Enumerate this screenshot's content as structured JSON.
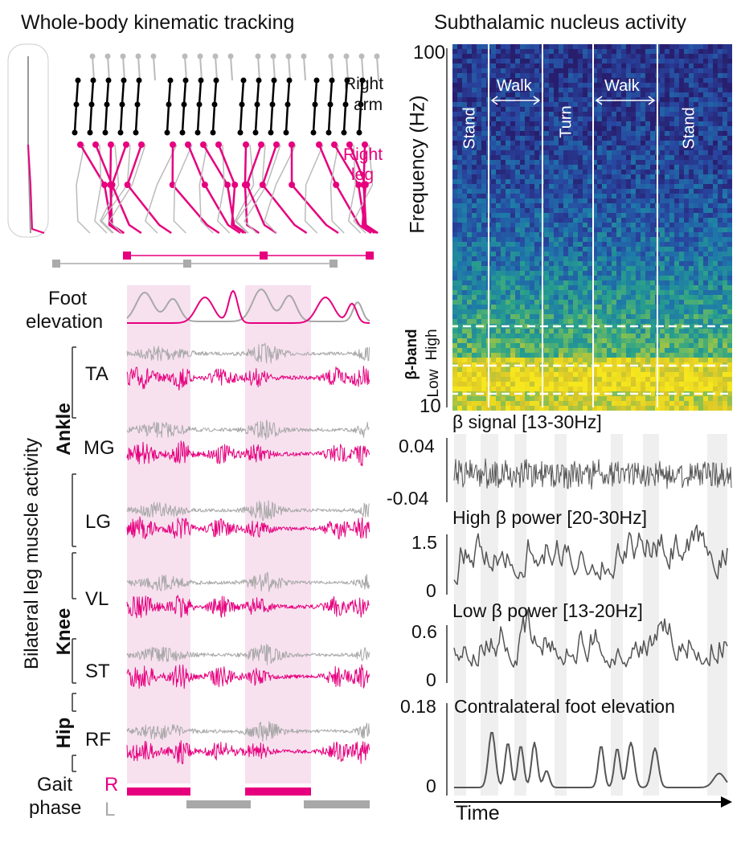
{
  "left": {
    "title": "Whole-body kinematic tracking",
    "right_arm_label": "Right\narm",
    "right_arm_1": "Right",
    "right_arm_2": "arm",
    "right_leg_1": "Right",
    "right_leg_2": "leg",
    "foot_elevation_1": "Foot",
    "foot_elevation_2": "elevation",
    "muscle_axis_label": "Bilateral leg muscle activity",
    "groups": {
      "ankle": "Ankle",
      "knee": "Knee",
      "hip": "Hip"
    },
    "muscles": [
      "TA",
      "MG",
      "LG",
      "VL",
      "ST",
      "RF"
    ],
    "gait_phase_1": "Gait",
    "gait_phase_2": "phase",
    "gait_R": "R",
    "gait_L": "L"
  },
  "right": {
    "title": "Subthalamic nucleus activity",
    "freq_label": "Frequency (Hz)",
    "freq_max": "100",
    "freq_min": "10",
    "phases": {
      "stand1": "Stand",
      "walk1": "Walk",
      "turn": "Turn",
      "walk2": "Walk",
      "stand2": "Stand"
    },
    "beta_band": "β-band",
    "beta_high": "High",
    "beta_low": "Low",
    "beta_signal": {
      "title": "β signal [13-30Hz]",
      "ymax": "0.04",
      "ymin": "-0.04"
    },
    "high_beta": {
      "title": "High β power [20-30Hz]",
      "ymax": "1.5",
      "ymin": "0"
    },
    "low_beta": {
      "title": "Low β power [13-20Hz]",
      "ymax": "0.6",
      "ymin": "0"
    },
    "foot": {
      "title": "Contralateral foot elevation",
      "ymax": "0.18",
      "ymin": "0"
    },
    "time_label": "Time"
  },
  "colors": {
    "right": "#e6007e",
    "left": "#a8a8a8",
    "shade": "#f7e1ef",
    "gray_shade": "#efefef",
    "trace": "#555555",
    "arm": "#000000"
  }
}
